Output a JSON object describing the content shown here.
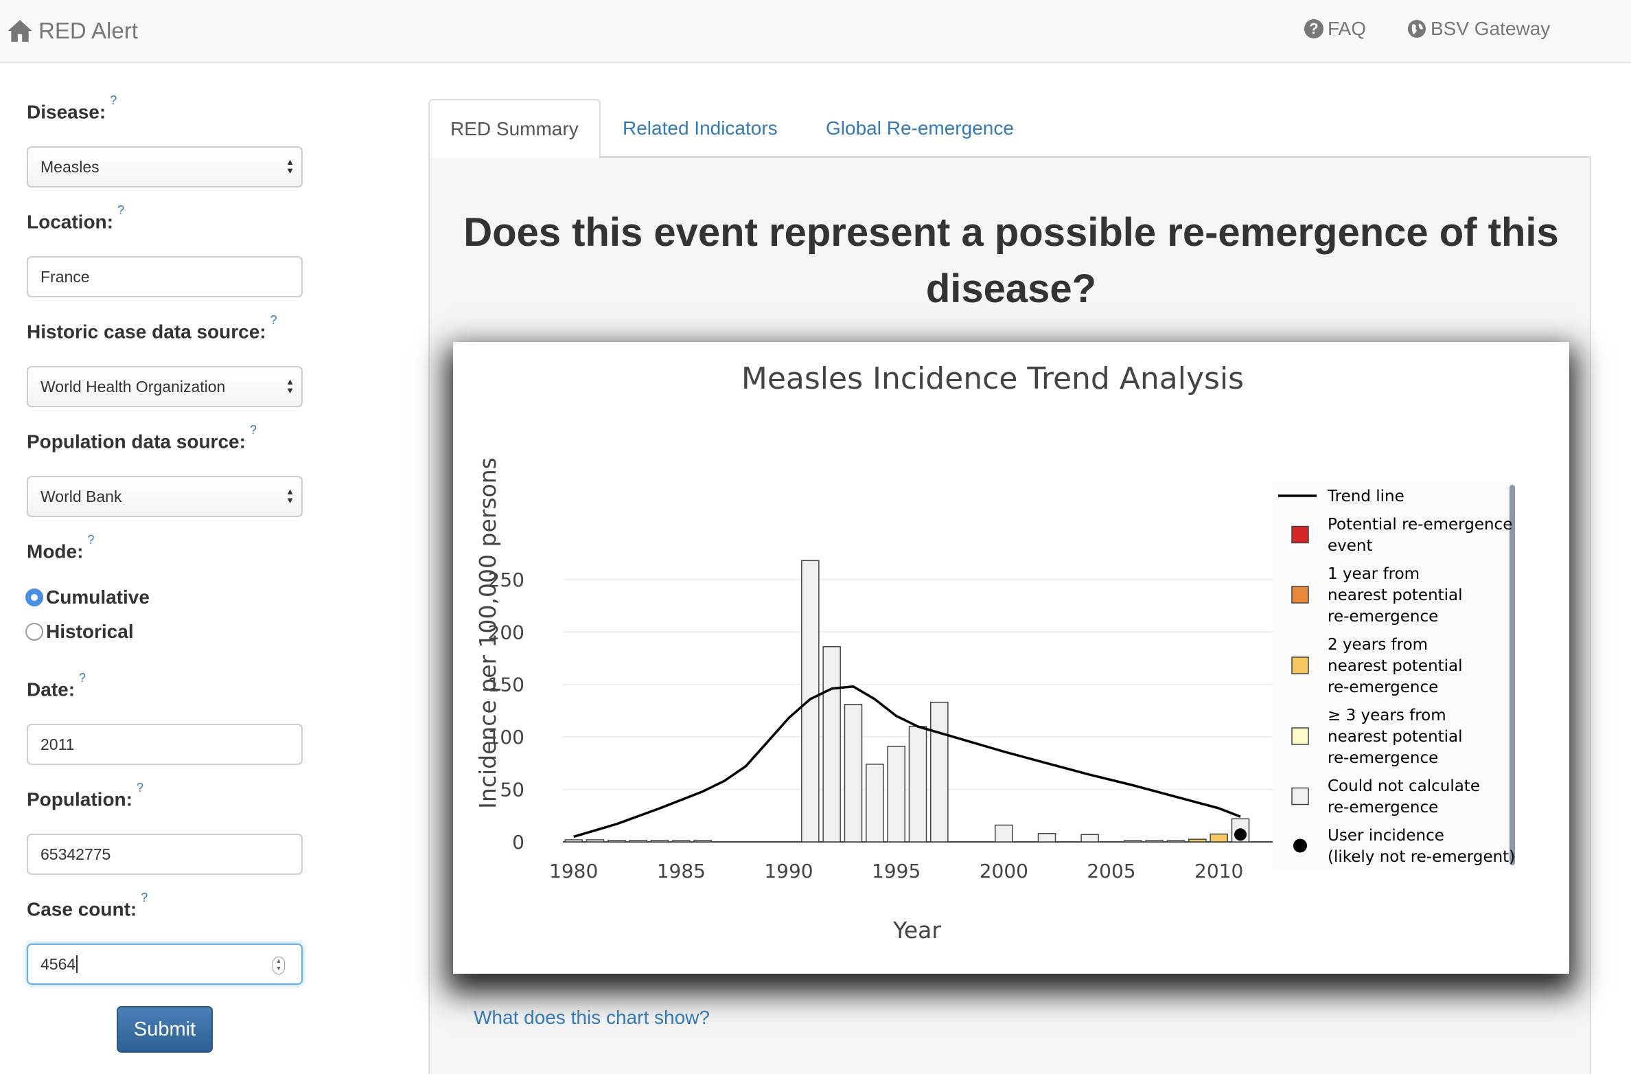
{
  "navbar": {
    "brand": "RED Alert",
    "faq": "FAQ",
    "gateway": "BSV Gateway"
  },
  "form": {
    "disease_label": "Disease:",
    "disease_value": "Measles",
    "location_label": "Location:",
    "location_value": "France",
    "historic_label": "Historic case data source:",
    "historic_value": "World Health Organization",
    "population_source_label": "Population data source:",
    "population_source_value": "World Bank",
    "mode_label": "Mode:",
    "mode_options": [
      "Cumulative",
      "Historical"
    ],
    "mode_selected": "Cumulative",
    "date_label": "Date:",
    "date_value": "2011",
    "population_label": "Population:",
    "population_value": "65342775",
    "case_count_label": "Case count:",
    "case_count_value": "4564",
    "help_mark": "?",
    "submit": "Submit"
  },
  "tabs": [
    "RED Summary",
    "Related Indicators",
    "Global Re-emergence"
  ],
  "active_tab": "RED Summary",
  "question": "Does this event represent a possible re-emergence of this disease?",
  "chart_link": "What does this chart show?",
  "colors": {
    "potential": "#d62728",
    "one_year": "#e8863a",
    "two_years": "#f5c55f",
    "three_years": "#fafbc6",
    "not_calc": "#f0f0f0",
    "link": "#337ab7"
  },
  "chart_data": {
    "type": "bar",
    "title": "Measles Incidence Trend Analysis",
    "xlabel": "Year",
    "ylabel": "Incidence per 100,000 persons",
    "xlim": [
      1979.5,
      2012.5
    ],
    "ylim": [
      0,
      280
    ],
    "xticks": [
      1980,
      1985,
      1990,
      1995,
      2000,
      2005,
      2010
    ],
    "yticks": [
      0,
      50,
      100,
      150,
      200,
      250
    ],
    "grid": "horizontal",
    "legend_position": "right",
    "bars": [
      {
        "x": 1980,
        "y": 2,
        "cat": "not_calc"
      },
      {
        "x": 1981,
        "y": 2,
        "cat": "not_calc"
      },
      {
        "x": 1982,
        "y": 1.5,
        "cat": "not_calc"
      },
      {
        "x": 1983,
        "y": 1.5,
        "cat": "not_calc"
      },
      {
        "x": 1984,
        "y": 1.5,
        "cat": "not_calc"
      },
      {
        "x": 1985,
        "y": 1,
        "cat": "not_calc"
      },
      {
        "x": 1986,
        "y": 1.5,
        "cat": "not_calc"
      },
      {
        "x": 1991,
        "y": 268,
        "cat": "not_calc"
      },
      {
        "x": 1992,
        "y": 186,
        "cat": "not_calc"
      },
      {
        "x": 1993,
        "y": 131,
        "cat": "not_calc"
      },
      {
        "x": 1994,
        "y": 74,
        "cat": "not_calc"
      },
      {
        "x": 1995,
        "y": 91,
        "cat": "not_calc"
      },
      {
        "x": 1996,
        "y": 110,
        "cat": "not_calc"
      },
      {
        "x": 1997,
        "y": 133,
        "cat": "not_calc"
      },
      {
        "x": 2000,
        "y": 16,
        "cat": "not_calc"
      },
      {
        "x": 2002,
        "y": 8,
        "cat": "not_calc"
      },
      {
        "x": 2004,
        "y": 7,
        "cat": "not_calc"
      },
      {
        "x": 2006,
        "y": 0.4,
        "cat": "not_calc"
      },
      {
        "x": 2007,
        "y": 0.4,
        "cat": "not_calc"
      },
      {
        "x": 2008,
        "y": 1,
        "cat": "three_years"
      },
      {
        "x": 2009,
        "y": 2.5,
        "cat": "two_years"
      },
      {
        "x": 2010,
        "y": 7.5,
        "cat": "two_years"
      },
      {
        "x": 2011,
        "y": 22,
        "cat": "not_calc"
      }
    ],
    "trend_line": [
      [
        1980,
        5
      ],
      [
        1982,
        17
      ],
      [
        1984,
        32
      ],
      [
        1986,
        48
      ],
      [
        1987,
        58
      ],
      [
        1988,
        72
      ],
      [
        1989,
        95
      ],
      [
        1990,
        118
      ],
      [
        1991,
        136
      ],
      [
        1992,
        146
      ],
      [
        1993,
        148
      ],
      [
        1994,
        136
      ],
      [
        1995,
        120
      ],
      [
        1996,
        110
      ],
      [
        1998,
        98
      ],
      [
        2000,
        86
      ],
      [
        2002,
        75
      ],
      [
        2004,
        64
      ],
      [
        2006,
        54
      ],
      [
        2008,
        43
      ],
      [
        2010,
        32
      ],
      [
        2011,
        24
      ]
    ],
    "user_point": {
      "x": 2011,
      "y": 7
    },
    "legend": [
      {
        "key": "trend",
        "label": [
          "Trend line"
        ]
      },
      {
        "key": "potential",
        "label": [
          "Potential re-emergence",
          "event"
        ]
      },
      {
        "key": "one_year",
        "label": [
          "1 year from",
          "nearest potential",
          "re-emergence"
        ]
      },
      {
        "key": "two_years",
        "label": [
          "2 years from",
          "nearest potential",
          "re-emergence"
        ]
      },
      {
        "key": "three_years",
        "label": [
          "≥ 3 years from",
          "nearest potential",
          "re-emergence"
        ]
      },
      {
        "key": "not_calc",
        "label": [
          "Could not calculate",
          "re-emergence"
        ]
      },
      {
        "key": "user",
        "label": [
          "User incidence",
          "(likely not re-emergent)"
        ]
      }
    ]
  }
}
